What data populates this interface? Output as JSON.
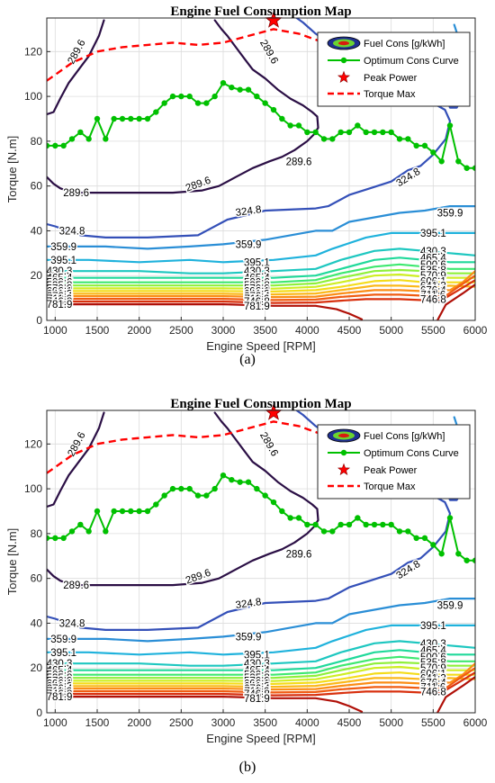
{
  "chart_data": [
    {
      "type": "line",
      "panel_label": "(a)",
      "title": "Engine Fuel Consumption Map",
      "xlabel": "Engine Speed [RPM]",
      "ylabel": "Torque [N.m]",
      "xlim": [
        900,
        6000
      ],
      "ylim": [
        0,
        135
      ],
      "xticks": [
        1000,
        1500,
        2000,
        2500,
        3000,
        3500,
        4000,
        4500,
        5000,
        5500,
        6000
      ],
      "yticks": [
        0,
        20,
        40,
        60,
        80,
        100,
        120
      ],
      "grid": true,
      "legend": {
        "placement": "top-right",
        "entries": [
          "Fuel Cons [g/kWh]",
          "Optimum Cons Curve",
          "Peak Power",
          "Torque Max"
        ]
      },
      "series": [
        {
          "name": "Optimum Cons Curve",
          "color": "#00c000",
          "x": [
            900,
            1000,
            1100,
            1200,
            1300,
            1400,
            1500,
            1600,
            1700,
            1800,
            1900,
            2000,
            2100,
            2200,
            2300,
            2400,
            2500,
            2600,
            2700,
            2800,
            2900,
            3000,
            3100,
            3200,
            3300,
            3400,
            3500,
            3600,
            3700,
            3800,
            3900,
            4000,
            4100,
            4200,
            4300,
            4400,
            4500,
            4600,
            4700,
            4800,
            4900,
            5000,
            5100,
            5200,
            5300,
            5400,
            5500,
            5600,
            5700,
            5800,
            5900,
            6000
          ],
          "y": [
            78,
            78,
            78,
            81,
            84,
            81,
            90,
            81,
            90,
            90,
            90,
            90,
            90,
            93,
            97,
            100,
            100,
            100,
            97,
            97,
            100,
            106,
            104,
            103,
            103,
            100,
            97,
            94,
            90,
            87,
            87,
            84,
            84,
            81,
            81,
            84,
            84,
            87,
            84,
            84,
            84,
            84,
            81,
            81,
            78,
            78,
            75,
            71,
            87,
            71,
            68,
            68
          ]
        },
        {
          "name": "Torque Max",
          "color": "#ff0000",
          "x": [
            900,
            1200,
            1500,
            1800,
            2100,
            2400,
            2700,
            3000,
            3300,
            3600,
            3900,
            4200
          ],
          "y": [
            107,
            115,
            120,
            122,
            123,
            124,
            123,
            124,
            127,
            130,
            128,
            124
          ]
        },
        {
          "name": "Peak Power",
          "color": "#ff0000",
          "x": [
            3600
          ],
          "y": [
            134
          ]
        }
      ],
      "contours": [
        {
          "level": "289.6",
          "color": "#2b0f45"
        },
        {
          "level": "324.8",
          "color": "#3450b8"
        },
        {
          "level": "359.9",
          "color": "#2a8ed6"
        },
        {
          "level": "395.1",
          "color": "#1fb2dc"
        },
        {
          "level": "430.3",
          "color": "#1ec7c0"
        },
        {
          "level": "465.4",
          "color": "#20d99a"
        },
        {
          "level": "500.6",
          "color": "#3ee870"
        },
        {
          "level": "535.8",
          "color": "#8ff03a"
        },
        {
          "level": "570.9",
          "color": "#cfee23"
        },
        {
          "level": "606.1",
          "color": "#f4dc1a"
        },
        {
          "level": "641.3",
          "color": "#fbb81a"
        },
        {
          "level": "676.4",
          "color": "#fb8d16"
        },
        {
          "level": "711.6",
          "color": "#f05c12"
        },
        {
          "level": "746.8",
          "color": "#d8300e"
        },
        {
          "level": "781.9",
          "color": "#b01008"
        }
      ]
    },
    {
      "type": "line",
      "panel_label": "(b)",
      "title": "Engine Fuel Consumption Map",
      "xlabel": "Engine Speed [RPM]",
      "ylabel": "Torque [N.m]",
      "xlim": [
        900,
        6000
      ],
      "ylim": [
        0,
        135
      ],
      "xticks": [
        1000,
        1500,
        2000,
        2500,
        3000,
        3500,
        4000,
        4500,
        5000,
        5500,
        6000
      ],
      "yticks": [
        0,
        20,
        40,
        60,
        80,
        100,
        120
      ],
      "grid": true,
      "legend": {
        "placement": "top-right",
        "entries": [
          "Fuel Cons [g/kWh]",
          "Optimum Cons Curve",
          "Peak Power",
          "Torque Max"
        ]
      },
      "series": [
        {
          "name": "Optimum Cons Curve",
          "color": "#00c000",
          "x": [
            900,
            1000,
            1100,
            1200,
            1300,
            1400,
            1500,
            1600,
            1700,
            1800,
            1900,
            2000,
            2100,
            2200,
            2300,
            2400,
            2500,
            2600,
            2700,
            2800,
            2900,
            3000,
            3100,
            3200,
            3300,
            3400,
            3500,
            3600,
            3700,
            3800,
            3900,
            4000,
            4100,
            4200,
            4300,
            4400,
            4500,
            4600,
            4700,
            4800,
            4900,
            5000,
            5100,
            5200,
            5300,
            5400,
            5500,
            5600,
            5700,
            5800,
            5900,
            6000
          ],
          "y": [
            78,
            78,
            78,
            81,
            84,
            81,
            90,
            81,
            90,
            90,
            90,
            90,
            90,
            93,
            97,
            100,
            100,
            100,
            97,
            97,
            100,
            106,
            104,
            103,
            103,
            100,
            97,
            94,
            90,
            87,
            87,
            84,
            84,
            81,
            81,
            84,
            84,
            87,
            84,
            84,
            84,
            84,
            81,
            81,
            78,
            78,
            75,
            71,
            87,
            71,
            68,
            68
          ]
        },
        {
          "name": "Torque Max",
          "color": "#ff0000",
          "x": [
            900,
            1200,
            1500,
            1800,
            2100,
            2400,
            2700,
            3000,
            3300,
            3600,
            3900,
            4200
          ],
          "y": [
            107,
            115,
            120,
            122,
            123,
            124,
            123,
            124,
            127,
            130,
            128,
            124
          ]
        },
        {
          "name": "Peak Power",
          "color": "#ff0000",
          "x": [
            3600
          ],
          "y": [
            134
          ]
        }
      ],
      "contours": [
        {
          "level": "289.6",
          "color": "#2b0f45"
        },
        {
          "level": "324.8",
          "color": "#3450b8"
        },
        {
          "level": "359.9",
          "color": "#2a8ed6"
        },
        {
          "level": "395.1",
          "color": "#1fb2dc"
        },
        {
          "level": "430.3",
          "color": "#1ec7c0"
        },
        {
          "level": "465.4",
          "color": "#20d99a"
        },
        {
          "level": "500.6",
          "color": "#3ee870"
        },
        {
          "level": "535.8",
          "color": "#8ff03a"
        },
        {
          "level": "570.9",
          "color": "#cfee23"
        },
        {
          "level": "606.1",
          "color": "#f4dc1a"
        },
        {
          "level": "641.3",
          "color": "#fbb81a"
        },
        {
          "level": "676.4",
          "color": "#fb8d16"
        },
        {
          "level": "711.6",
          "color": "#f05c12"
        },
        {
          "level": "746.8",
          "color": "#d8300e"
        },
        {
          "level": "781.9",
          "color": "#b01008"
        }
      ]
    }
  ]
}
